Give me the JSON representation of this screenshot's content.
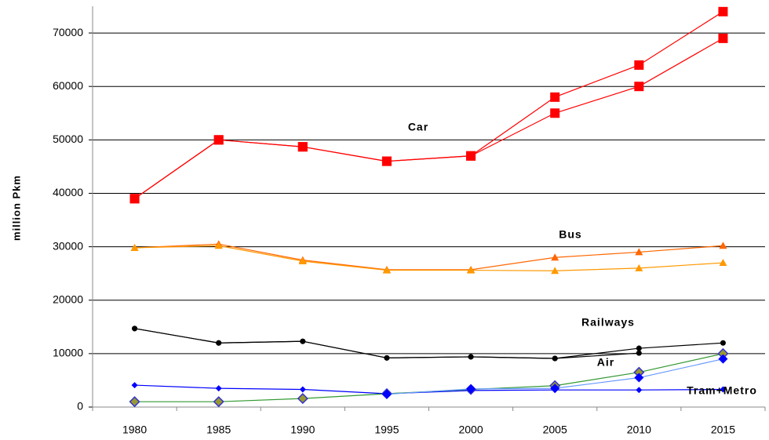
{
  "chart_data": {
    "type": "line",
    "y_label": "million Pkm",
    "categories": [
      "1980",
      "1985",
      "1990",
      "1995",
      "2000",
      "2005",
      "2010",
      "2015"
    ],
    "ylim": [
      0,
      75000
    ],
    "yticks": [
      0,
      10000,
      20000,
      30000,
      40000,
      50000,
      60000,
      70000
    ],
    "grid": true,
    "annotations": [
      "Car",
      "Bus",
      "Railways",
      "Air",
      "Tram+Metro"
    ],
    "series": [
      {
        "color": "#ff0000",
        "marker": "square",
        "values": [
          39000,
          50000,
          48700,
          46000,
          47000,
          58000,
          64000,
          74000
        ]
      },
      {
        "color": "#ff0000",
        "marker": "square",
        "values": [
          39000,
          50000,
          48700,
          46000,
          47000,
          55000,
          60000,
          69000
        ]
      },
      {
        "color": "#ff6600",
        "marker": "triangle",
        "values": [
          29800,
          30500,
          27500,
          25700,
          25700,
          28000,
          29000,
          30200
        ]
      },
      {
        "color": "#ff9900",
        "marker": "triangle",
        "values": [
          29800,
          30200,
          27300,
          25600,
          25600,
          25500,
          26000,
          27000
        ]
      },
      {
        "color": "#000000",
        "marker": "circle",
        "values": [
          14700,
          12000,
          12300,
          9200,
          9400,
          9100,
          11000,
          12000
        ]
      },
      {
        "color": "#000000",
        "marker": "circle",
        "values": [
          14700,
          12000,
          12300,
          9200,
          9400,
          9100,
          10100,
          null
        ]
      },
      {
        "color": "#0000ff",
        "marker": "star",
        "values": [
          4100,
          3500,
          3300,
          2500,
          3100,
          3200,
          3200,
          3300
        ]
      },
      {
        "color": "#339933",
        "marker": "olive-diamond",
        "values": [
          1000,
          1000,
          1600,
          2500,
          3300,
          4000,
          6500,
          10000
        ]
      },
      {
        "color": "#6699ff",
        "marker": "diamond",
        "values": [
          null,
          null,
          null,
          2400,
          3400,
          3500,
          5500,
          9000
        ]
      }
    ]
  }
}
